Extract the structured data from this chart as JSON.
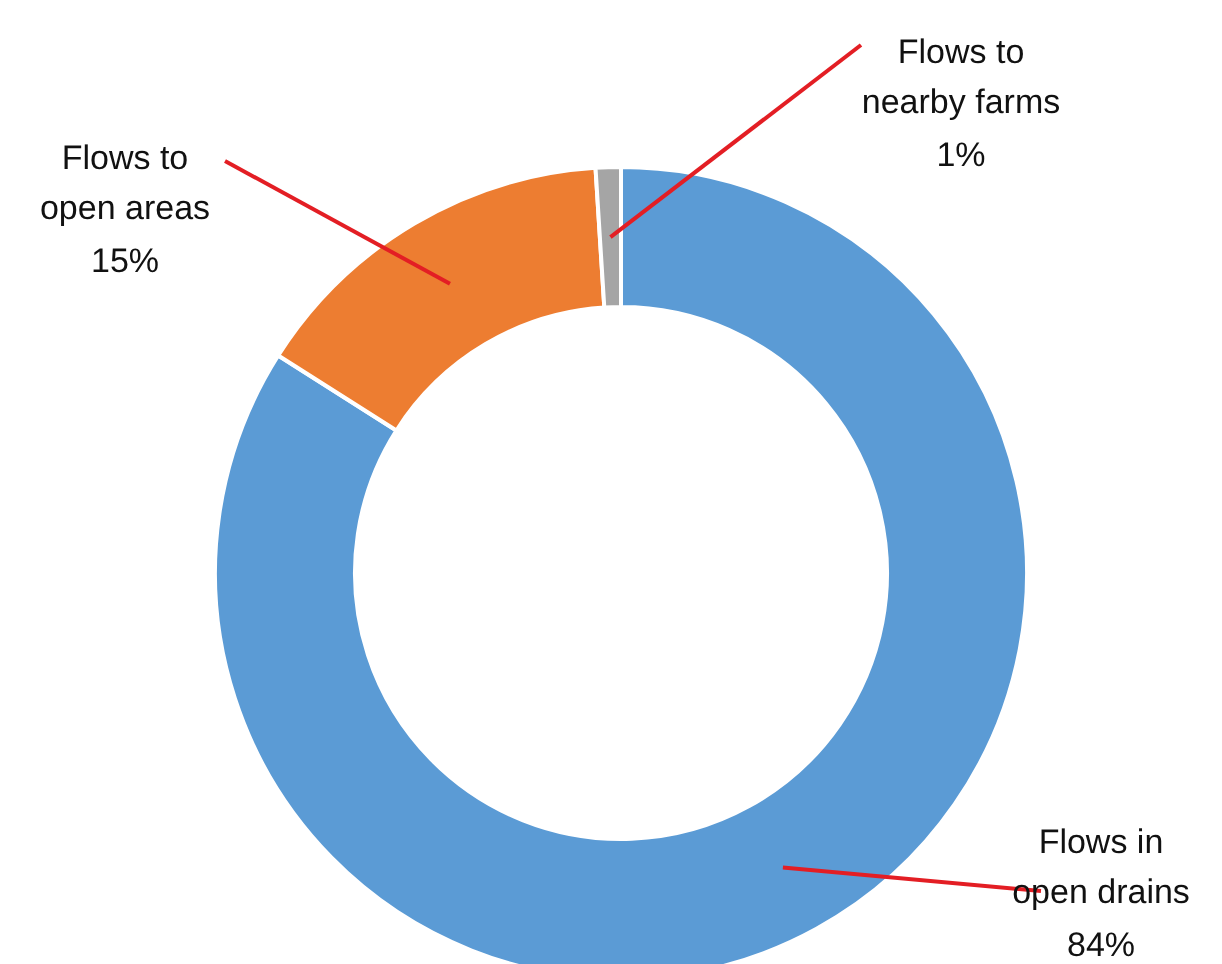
{
  "chart_data": {
    "type": "donut",
    "categories": [
      "Flows in\nopen drains",
      "Flows to\nopen areas",
      "Flows to\nnearby farms"
    ],
    "values": [
      84,
      15,
      1
    ],
    "value_labels": [
      "84%",
      "15%",
      "1%"
    ],
    "colors": [
      "#5b9bd5",
      "#ed7d31",
      "#a5a5a5"
    ]
  }
}
